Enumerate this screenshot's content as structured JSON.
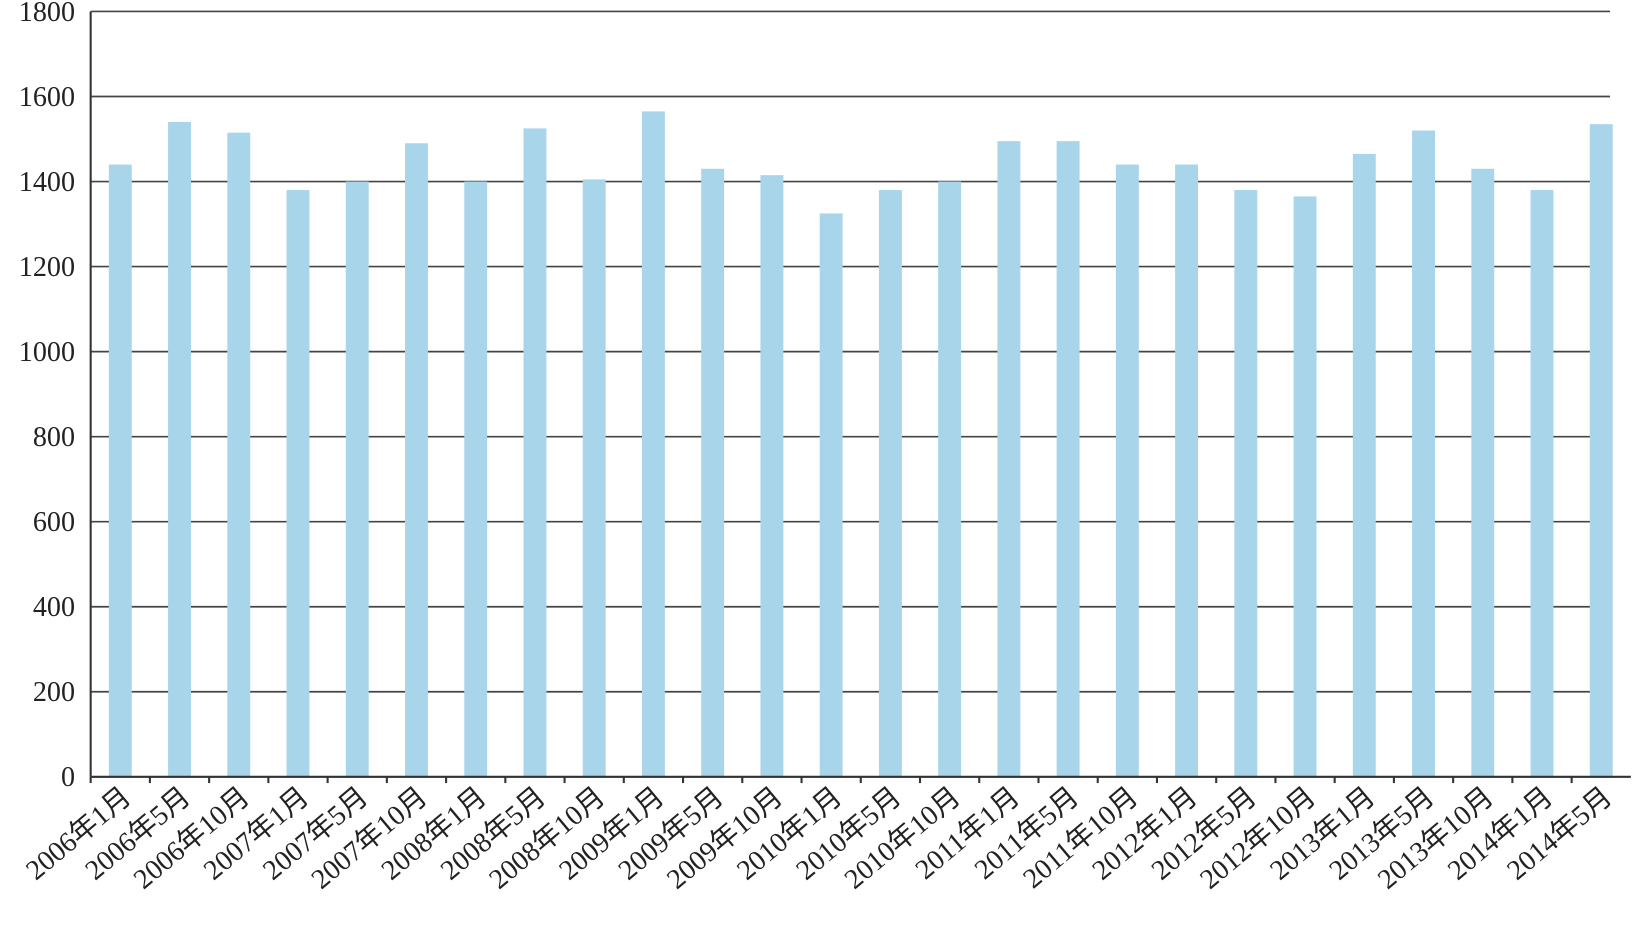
{
  "chart_data": {
    "type": "bar",
    "categories": [
      "2006年1月",
      "2006年5月",
      "2006年10月",
      "2007年1月",
      "2007年5月",
      "2007年10月",
      "2008年1月",
      "2008年5月",
      "2008年10月",
      "2009年1月",
      "2009年5月",
      "2009年10月",
      "2010年1月",
      "2010年5月",
      "2010年10月",
      "2011年1月",
      "2011年5月",
      "2011年10月",
      "2012年1月",
      "2012年5月",
      "2012年10月",
      "2013年1月",
      "2013年5月",
      "2013年10月",
      "2014年1月",
      "2014年5月"
    ],
    "values": [
      1440,
      1540,
      1515,
      1380,
      1400,
      1490,
      1400,
      1525,
      1405,
      1565,
      1430,
      1415,
      1325,
      1380,
      1400,
      1495,
      1495,
      1440,
      1440,
      1380,
      1365,
      1465,
      1520,
      1430,
      1380,
      1535
    ],
    "color": "#a9d5ea",
    "ylim": [
      0,
      1800
    ],
    "yticks": [
      0,
      200,
      400,
      600,
      800,
      1000,
      1200,
      1400,
      1600,
      1800
    ],
    "grid": true
  }
}
